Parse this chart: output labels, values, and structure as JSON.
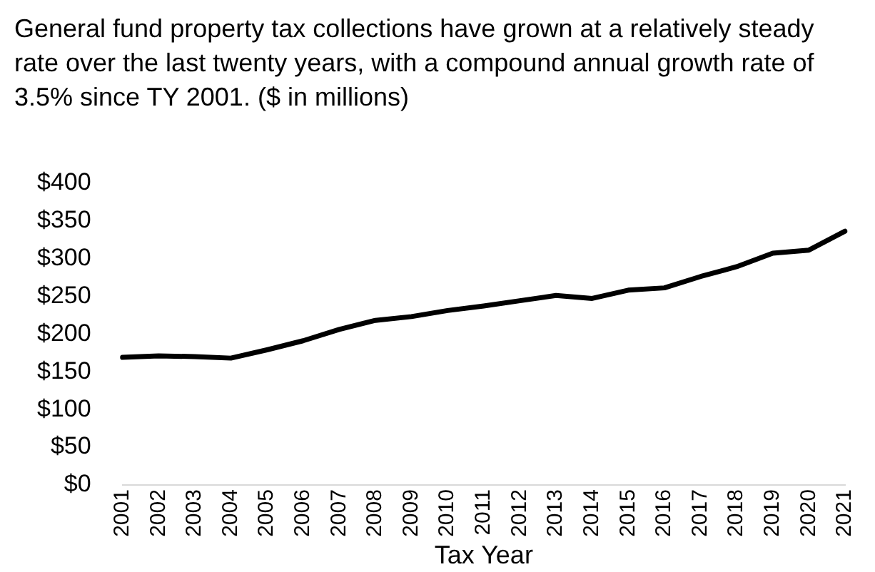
{
  "chart_data": {
    "type": "line",
    "title": "General fund property tax collections have grown at a relatively steady rate over the last twenty years, with a compound annual growth rate of 3.5% since TY 2001. ($ in millions)",
    "xlabel": "Tax Year",
    "categories": [
      "2001",
      "2002",
      "2003",
      "2004",
      "2005",
      "2006",
      "2007",
      "2008",
      "2009",
      "2010",
      "2011",
      "2012",
      "2013",
      "2014",
      "2015",
      "2016",
      "2017",
      "2018",
      "2019",
      "2020",
      "2021"
    ],
    "series": [
      {
        "color": "#000000",
        "values": [
          169,
          171,
          170,
          168,
          179,
          191,
          206,
          218,
          223,
          231,
          237,
          244,
          251,
          247,
          258,
          261,
          276,
          289,
          307,
          311,
          336
        ]
      }
    ],
    "ylim": [
      0,
      400
    ],
    "yticks": [
      {
        "value": 0,
        "label": "$0"
      },
      {
        "value": 50,
        "label": "$50"
      },
      {
        "value": 100,
        "label": "$100"
      },
      {
        "value": 150,
        "label": "$150"
      },
      {
        "value": 200,
        "label": "$200"
      },
      {
        "value": 250,
        "label": "$250"
      },
      {
        "value": 300,
        "label": "$300"
      },
      {
        "value": 350,
        "label": "$350"
      },
      {
        "value": 400,
        "label": "$400"
      }
    ],
    "grid": false,
    "legend": false,
    "marker": "none",
    "line_style": "solid"
  }
}
